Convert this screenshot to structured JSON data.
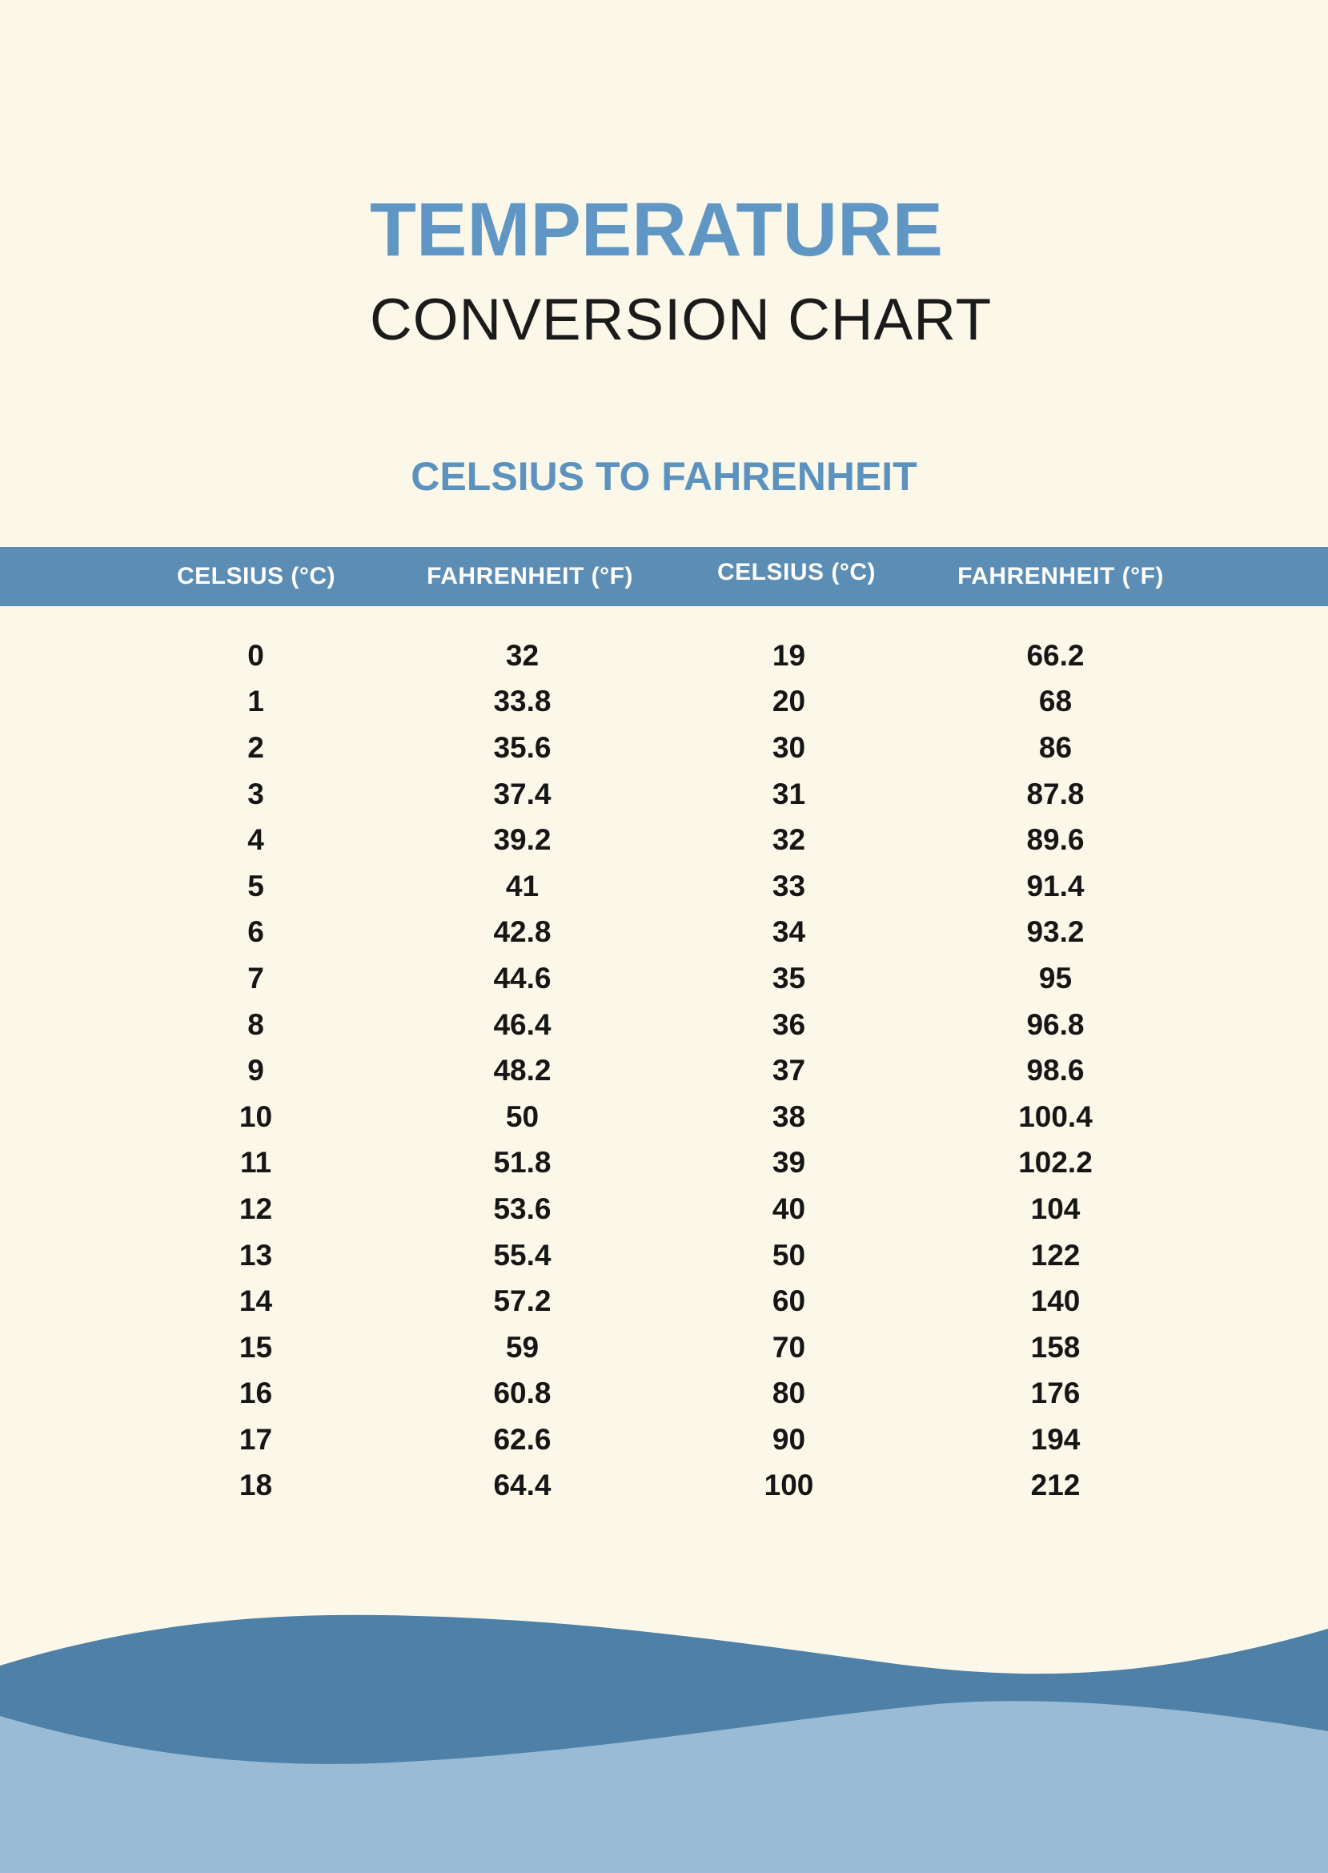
{
  "page": {
    "title_line1": "TEMPERATURE",
    "title_line2": "CONVERSION CHART",
    "subtitle": "CELSIUS TO FAHRENHEIT"
  },
  "colors": {
    "background": "#FBF8E9",
    "title_blue": "#6096C3",
    "subtitle_blue": "#5C92BE",
    "header_band": "#5C8DB4",
    "header_text": "#FFFFFF",
    "body_text": "#161616",
    "wave_dark": "#4E80A8",
    "wave_light": "#99BBD5"
  },
  "table": {
    "headers": [
      "CELSIUS (°C)",
      "FAHRENHEIT (°F)",
      "CELSIUS (°C)",
      "FAHRENHEIT (°F)"
    ],
    "rows": [
      [
        "0",
        "32",
        "19",
        "66.2"
      ],
      [
        "1",
        "33.8",
        "20",
        "68"
      ],
      [
        "2",
        "35.6",
        "30",
        "86"
      ],
      [
        "3",
        "37.4",
        "31",
        "87.8"
      ],
      [
        "4",
        "39.2",
        "32",
        "89.6"
      ],
      [
        "5",
        "41",
        "33",
        "91.4"
      ],
      [
        "6",
        "42.8",
        "34",
        "93.2"
      ],
      [
        "7",
        "44.6",
        "35",
        "95"
      ],
      [
        "8",
        "46.4",
        "36",
        "96.8"
      ],
      [
        "9",
        "48.2",
        "37",
        "98.6"
      ],
      [
        "10",
        "50",
        "38",
        "100.4"
      ],
      [
        "11",
        "51.8",
        "39",
        "102.2"
      ],
      [
        "12",
        "53.6",
        "40",
        "104"
      ],
      [
        "13",
        "55.4",
        "50",
        "122"
      ],
      [
        "14",
        "57.2",
        "60",
        "140"
      ],
      [
        "15",
        "59",
        "70",
        "158"
      ],
      [
        "16",
        "60.8",
        "80",
        "176"
      ],
      [
        "17",
        "62.6",
        "90",
        "194"
      ],
      [
        "18",
        "64.4",
        "100",
        "212"
      ]
    ]
  },
  "chart_data": {
    "type": "table",
    "title": "TEMPERATURE CONVERSION CHART — CELSIUS TO FAHRENHEIT",
    "columns": [
      "CELSIUS (°C)",
      "FAHRENHEIT (°F)",
      "CELSIUS (°C)",
      "FAHRENHEIT (°F)"
    ],
    "celsius": [
      0,
      1,
      2,
      3,
      4,
      5,
      6,
      7,
      8,
      9,
      10,
      11,
      12,
      13,
      14,
      15,
      16,
      17,
      18,
      19,
      20,
      30,
      31,
      32,
      33,
      34,
      35,
      36,
      37,
      38,
      39,
      40,
      50,
      60,
      70,
      80,
      90,
      100
    ],
    "fahrenheit": [
      32,
      33.8,
      35.6,
      37.4,
      39.2,
      41,
      42.8,
      44.6,
      46.4,
      48.2,
      50,
      51.8,
      53.6,
      55.4,
      57.2,
      59,
      60.8,
      62.6,
      64.4,
      66.2,
      68,
      86,
      87.8,
      89.6,
      91.4,
      93.2,
      95,
      96.8,
      98.6,
      100.4,
      102.2,
      104,
      122,
      140,
      158,
      176,
      194,
      212
    ]
  }
}
